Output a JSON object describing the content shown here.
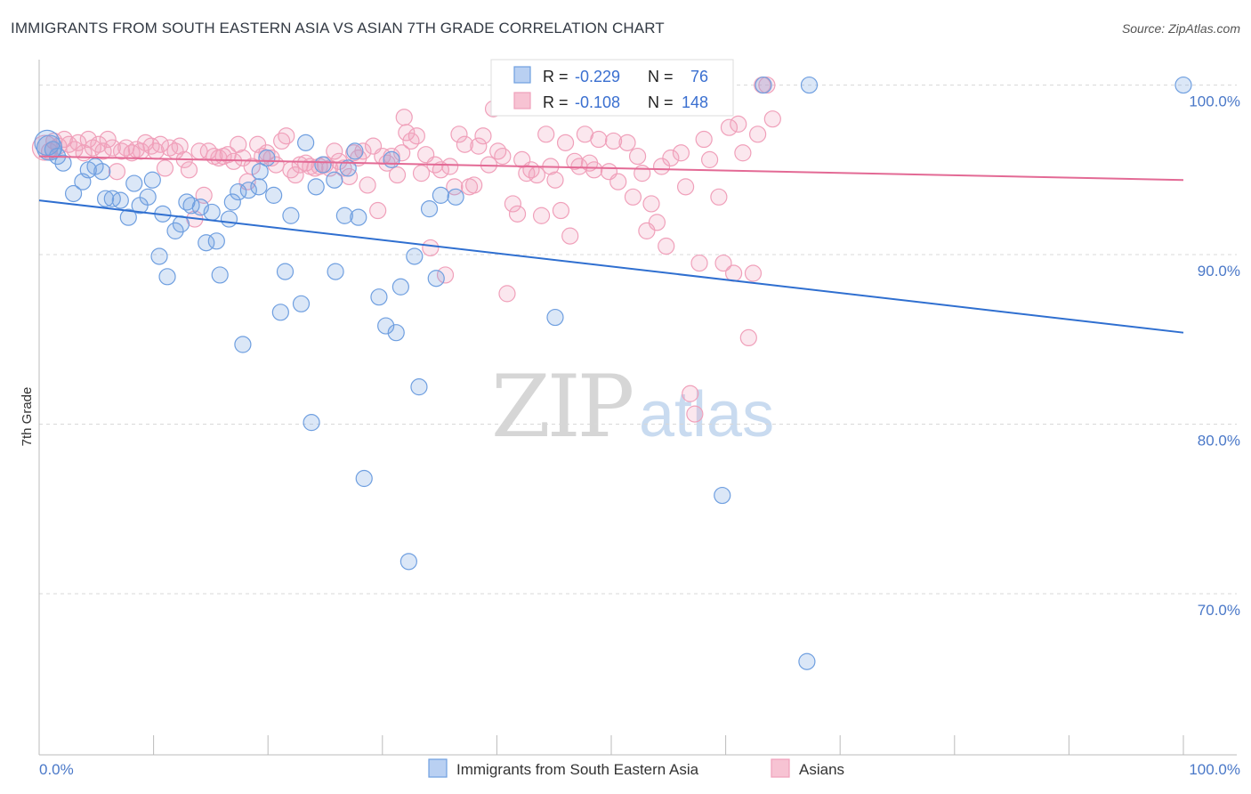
{
  "title": "IMMIGRANTS FROM SOUTH EASTERN ASIA VS ASIAN 7TH GRADE CORRELATION CHART",
  "source": "Source: ZipAtlas.com",
  "watermark": {
    "zip": "ZIP",
    "atlas": "atlas"
  },
  "colors": {
    "blue": "#6f9fe0",
    "blue_line": "#2f6fd0",
    "pink": "#f0a0ba",
    "pink_line": "#e36a95",
    "grid": "#d8d8d8"
  },
  "stats": {
    "r_label": "R =",
    "n_label": "N =",
    "blue": {
      "r": "-0.229",
      "n": "76"
    },
    "pink": {
      "r": "-0.108",
      "n": "148"
    }
  },
  "chart_data": {
    "type": "scatter",
    "ylabel": "7th Grade",
    "xlim": [
      0,
      100
    ],
    "ylim": [
      60.5,
      101.5
    ],
    "x_tick_labels": {
      "left": "0.0%",
      "right": "100.0%"
    },
    "y_ticks": [
      {
        "value": 100,
        "label": "100.0%"
      },
      {
        "value": 90,
        "label": "90.0%"
      },
      {
        "value": 80,
        "label": "80.0%"
      },
      {
        "value": 70,
        "label": "70.0%"
      }
    ],
    "legend_position": "bottom-center",
    "series": [
      {
        "name": "Immigrants from South Eastern Asia",
        "color": "blue",
        "trend": {
          "x": [
            0,
            100
          ],
          "y": [
            93.2,
            85.4
          ]
        },
        "points": [
          [
            0.7,
            96.6
          ],
          [
            0.9,
            96.3
          ],
          [
            1.2,
            96.2
          ],
          [
            1.6,
            95.8
          ],
          [
            2.1,
            95.4
          ],
          [
            3.0,
            93.6
          ],
          [
            3.8,
            94.3
          ],
          [
            4.3,
            95.0
          ],
          [
            4.9,
            95.2
          ],
          [
            5.5,
            94.9
          ],
          [
            5.8,
            93.3
          ],
          [
            6.4,
            93.3
          ],
          [
            7.1,
            93.2
          ],
          [
            7.8,
            92.2
          ],
          [
            8.3,
            94.2
          ],
          [
            8.8,
            92.9
          ],
          [
            9.5,
            93.4
          ],
          [
            9.9,
            94.4
          ],
          [
            10.5,
            89.9
          ],
          [
            10.8,
            92.4
          ],
          [
            11.2,
            88.7
          ],
          [
            11.9,
            91.4
          ],
          [
            12.4,
            91.8
          ],
          [
            12.9,
            93.1
          ],
          [
            13.3,
            92.9
          ],
          [
            14.1,
            92.8
          ],
          [
            14.6,
            90.7
          ],
          [
            15.1,
            92.5
          ],
          [
            15.5,
            90.8
          ],
          [
            15.8,
            88.8
          ],
          [
            16.6,
            92.1
          ],
          [
            16.9,
            93.1
          ],
          [
            17.4,
            93.7
          ],
          [
            17.8,
            84.7
          ],
          [
            18.3,
            93.8
          ],
          [
            19.2,
            94.0
          ],
          [
            19.3,
            94.9
          ],
          [
            19.9,
            95.7
          ],
          [
            20.5,
            93.5
          ],
          [
            21.1,
            86.6
          ],
          [
            21.5,
            89.0
          ],
          [
            22.0,
            92.3
          ],
          [
            22.9,
            87.1
          ],
          [
            23.3,
            96.6
          ],
          [
            23.8,
            80.1
          ],
          [
            24.2,
            94.0
          ],
          [
            24.8,
            95.3
          ],
          [
            25.8,
            94.4
          ],
          [
            25.9,
            89.0
          ],
          [
            26.7,
            92.3
          ],
          [
            27.0,
            95.1
          ],
          [
            27.6,
            96.1
          ],
          [
            27.9,
            92.2
          ],
          [
            28.4,
            76.8
          ],
          [
            29.7,
            87.5
          ],
          [
            30.3,
            85.8
          ],
          [
            30.8,
            95.6
          ],
          [
            31.2,
            85.4
          ],
          [
            31.6,
            88.1
          ],
          [
            32.3,
            71.9
          ],
          [
            32.8,
            89.9
          ],
          [
            33.2,
            82.2
          ],
          [
            34.1,
            92.7
          ],
          [
            34.7,
            88.6
          ],
          [
            35.1,
            93.5
          ],
          [
            36.4,
            93.4
          ],
          [
            43.4,
            99.9
          ],
          [
            45.1,
            86.3
          ],
          [
            59.7,
            75.8
          ],
          [
            63.3,
            100.0
          ],
          [
            67.1,
            66.0
          ],
          [
            67.3,
            100.0
          ],
          [
            100,
            100.0
          ]
        ]
      },
      {
        "name": "Asians",
        "color": "pink",
        "trend": {
          "x": [
            0,
            100
          ],
          "y": [
            95.8,
            94.4
          ]
        },
        "points": [
          [
            0.5,
            96.3
          ],
          [
            0.9,
            96.1
          ],
          [
            1.3,
            96.7
          ],
          [
            1.7,
            96.4
          ],
          [
            2.2,
            96.8
          ],
          [
            2.6,
            96.5
          ],
          [
            3.1,
            96.2
          ],
          [
            3.4,
            96.6
          ],
          [
            3.9,
            96.0
          ],
          [
            4.3,
            96.8
          ],
          [
            4.7,
            96.3
          ],
          [
            5.2,
            96.5
          ],
          [
            5.6,
            96.1
          ],
          [
            6.0,
            96.8
          ],
          [
            6.4,
            96.3
          ],
          [
            6.8,
            94.9
          ],
          [
            7.2,
            96.1
          ],
          [
            7.6,
            96.3
          ],
          [
            8.1,
            96.0
          ],
          [
            8.5,
            96.2
          ],
          [
            8.9,
            96.1
          ],
          [
            9.3,
            96.6
          ],
          [
            9.8,
            96.4
          ],
          [
            10.2,
            96.1
          ],
          [
            10.6,
            96.5
          ],
          [
            11.0,
            95.1
          ],
          [
            11.4,
            96.3
          ],
          [
            11.9,
            96.1
          ],
          [
            12.3,
            96.4
          ],
          [
            12.7,
            95.6
          ],
          [
            13.1,
            95.0
          ],
          [
            13.6,
            92.1
          ],
          [
            14.0,
            96.1
          ],
          [
            14.4,
            93.5
          ],
          [
            14.8,
            96.1
          ],
          [
            15.3,
            95.8
          ],
          [
            15.7,
            95.7
          ],
          [
            16.1,
            95.8
          ],
          [
            16.5,
            95.9
          ],
          [
            17.0,
            95.5
          ],
          [
            17.4,
            96.5
          ],
          [
            17.8,
            95.7
          ],
          [
            18.2,
            94.3
          ],
          [
            18.6,
            95.2
          ],
          [
            19.1,
            96.5
          ],
          [
            19.5,
            95.8
          ],
          [
            19.9,
            96.0
          ],
          [
            20.3,
            95.7
          ],
          [
            20.7,
            95.3
          ],
          [
            21.2,
            96.7
          ],
          [
            21.6,
            97.0
          ],
          [
            22.0,
            95.0
          ],
          [
            22.4,
            94.7
          ],
          [
            22.8,
            95.3
          ],
          [
            23.3,
            95.4
          ],
          [
            23.7,
            95.2
          ],
          [
            24.1,
            95.1
          ],
          [
            24.5,
            95.2
          ],
          [
            25.0,
            95.3
          ],
          [
            25.4,
            95.1
          ],
          [
            25.8,
            96.1
          ],
          [
            26.2,
            95.5
          ],
          [
            26.6,
            95.1
          ],
          [
            27.1,
            94.6
          ],
          [
            27.5,
            96.0
          ],
          [
            27.9,
            95.7
          ],
          [
            28.3,
            96.1
          ],
          [
            28.7,
            94.1
          ],
          [
            29.2,
            96.4
          ],
          [
            29.6,
            92.6
          ],
          [
            30.0,
            95.8
          ],
          [
            30.4,
            95.4
          ],
          [
            30.8,
            95.8
          ],
          [
            31.3,
            94.7
          ],
          [
            31.7,
            96.0
          ],
          [
            31.9,
            98.1
          ],
          [
            32.1,
            97.2
          ],
          [
            32.5,
            96.7
          ],
          [
            33.0,
            97.0
          ],
          [
            33.4,
            94.8
          ],
          [
            33.8,
            95.9
          ],
          [
            34.2,
            90.4
          ],
          [
            34.6,
            95.3
          ],
          [
            35.1,
            95.0
          ],
          [
            35.5,
            88.8
          ],
          [
            35.9,
            95.2
          ],
          [
            36.3,
            94.0
          ],
          [
            36.7,
            97.1
          ],
          [
            37.2,
            96.5
          ],
          [
            37.6,
            94.0
          ],
          [
            38.0,
            94.1
          ],
          [
            38.4,
            96.4
          ],
          [
            38.8,
            97.0
          ],
          [
            39.3,
            95.3
          ],
          [
            39.7,
            98.6
          ],
          [
            40.1,
            96.1
          ],
          [
            40.5,
            95.8
          ],
          [
            40.9,
            87.7
          ],
          [
            41.4,
            93.0
          ],
          [
            41.8,
            92.4
          ],
          [
            42.2,
            95.6
          ],
          [
            42.6,
            94.8
          ],
          [
            43.0,
            95.0
          ],
          [
            43.5,
            94.7
          ],
          [
            43.9,
            92.3
          ],
          [
            44.3,
            97.1
          ],
          [
            44.7,
            95.2
          ],
          [
            45.1,
            94.4
          ],
          [
            45.6,
            92.6
          ],
          [
            46.0,
            96.6
          ],
          [
            46.4,
            91.1
          ],
          [
            46.8,
            95.5
          ],
          [
            47.2,
            95.2
          ],
          [
            47.7,
            97.1
          ],
          [
            48.1,
            95.4
          ],
          [
            48.5,
            95.0
          ],
          [
            48.9,
            96.8
          ],
          [
            49.3,
            98.7
          ],
          [
            49.8,
            94.9
          ],
          [
            50.2,
            96.7
          ],
          [
            50.6,
            94.3
          ],
          [
            51.0,
            99.9
          ],
          [
            51.4,
            96.6
          ],
          [
            51.9,
            93.4
          ],
          [
            52.3,
            95.8
          ],
          [
            52.7,
            94.8
          ],
          [
            53.1,
            91.4
          ],
          [
            53.5,
            93.0
          ],
          [
            54.0,
            91.9
          ],
          [
            54.4,
            95.2
          ],
          [
            54.8,
            90.5
          ],
          [
            55.2,
            95.7
          ],
          [
            55.6,
            98.8
          ],
          [
            56.1,
            96.0
          ],
          [
            56.5,
            94.0
          ],
          [
            56.9,
            81.8
          ],
          [
            57.3,
            80.6
          ],
          [
            57.7,
            89.5
          ],
          [
            58.1,
            96.8
          ],
          [
            58.6,
            95.6
          ],
          [
            59.0,
            98.9
          ],
          [
            59.4,
            93.4
          ],
          [
            59.8,
            89.5
          ],
          [
            60.3,
            97.5
          ],
          [
            60.7,
            88.9
          ],
          [
            61.1,
            97.7
          ],
          [
            61.5,
            96.0
          ],
          [
            62.0,
            85.1
          ],
          [
            62.4,
            88.9
          ],
          [
            62.8,
            97.1
          ],
          [
            63.2,
            100.0
          ],
          [
            63.6,
            100.0
          ],
          [
            64.1,
            98.0
          ]
        ]
      }
    ]
  },
  "legend": [
    {
      "label": "Immigrants from South Eastern Asia",
      "color": "blue"
    },
    {
      "label": "Asians",
      "color": "pink"
    }
  ]
}
